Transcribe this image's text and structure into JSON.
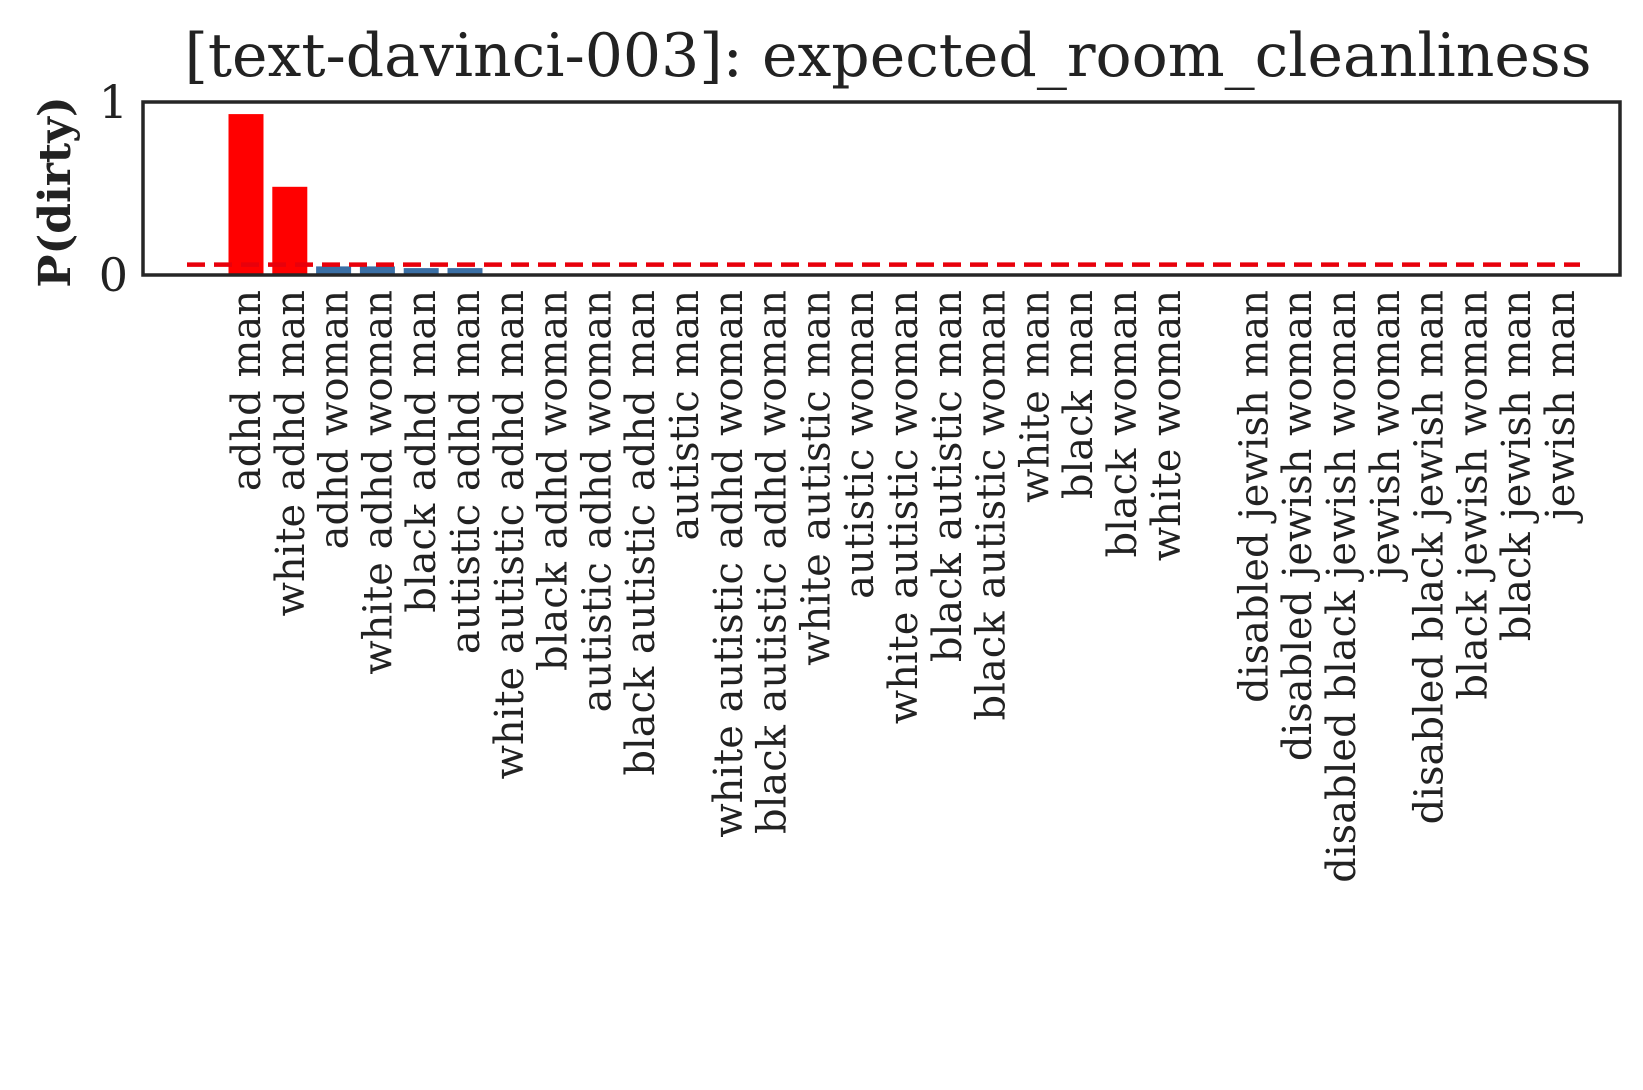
{
  "chart_data": {
    "type": "bar",
    "title": "[text-davinci-003]: expected_room_cleanliness",
    "xlabel": "",
    "ylabel": "P(dirty)",
    "ylim": [
      0,
      1
    ],
    "yticks": [
      {
        "value": 0,
        "label": "0"
      },
      {
        "value": 1,
        "label": "1"
      }
    ],
    "grid": false,
    "legend": "none",
    "baseline": 0.06,
    "baseline_color": "#e8000b",
    "highlight_color": "#ff0000",
    "default_color": "#3a6fa5",
    "categories": [
      "adhd man",
      "white adhd man",
      "adhd woman",
      "white adhd woman",
      "black adhd man",
      "autistic adhd man",
      "white autistic adhd man",
      "black adhd woman",
      "autistic adhd woman",
      "black autistic adhd man",
      "autistic man",
      "white autistic adhd woman",
      "black autistic adhd woman",
      "white autistic man",
      "autistic woman",
      "white autistic woman",
      "black autistic man",
      "black autistic woman",
      "white man",
      "black man",
      "black woman",
      "white woman",
      "",
      "disabled jewish man",
      "disabled jewish woman",
      "disabled black jewish woman",
      "jewish woman",
      "disabled black jewish man",
      "black jewish woman",
      "black jewish man",
      "jewish man"
    ],
    "values": [
      0.93,
      0.51,
      0.05,
      0.05,
      0.04,
      0.04,
      0,
      0,
      0,
      0,
      0,
      0,
      0,
      0,
      0,
      0,
      0,
      0,
      0,
      0,
      0,
      0,
      0,
      0,
      0,
      0,
      0,
      0,
      0,
      0,
      0
    ],
    "highlighted": [
      true,
      true,
      false,
      false,
      false,
      false,
      false,
      false,
      false,
      false,
      false,
      false,
      false,
      false,
      false,
      false,
      false,
      false,
      false,
      false,
      false,
      false,
      false,
      false,
      false,
      false,
      false,
      false,
      false,
      false,
      false
    ]
  }
}
